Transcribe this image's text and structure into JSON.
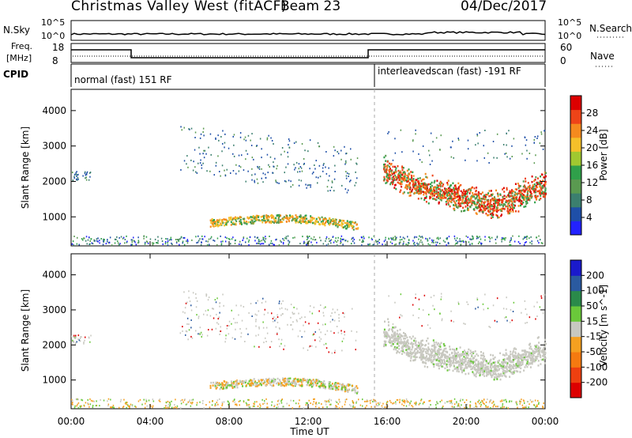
{
  "header": {
    "title": "Christmas Valley West (fitACF)",
    "beam": "Beam 23",
    "date": "04/Dec/2017"
  },
  "top_panels": {
    "nsky_label": "N.Sky",
    "nsearch_label": "N.Search",
    "nsky_ticks": [
      "10^5",
      "10^0"
    ],
    "nsearch_ticks": [
      "10^5",
      "10^0"
    ],
    "freq_label_1": "Freq.",
    "freq_label_2": "[MHz]",
    "freq_ticks": [
      "18",
      "8"
    ],
    "nave_label": "Nave",
    "nave_ticks": [
      "60",
      "0"
    ],
    "cpid_label": "CPID",
    "cpid_segments": [
      {
        "label": "normal (fast) 151 RF",
        "start": "00:00",
        "end": "15:00"
      },
      {
        "label": "interleavedscan (fast) -191 RF",
        "start": "15:00",
        "end": "24:00"
      }
    ]
  },
  "chart_data": [
    {
      "type": "heatmap",
      "title": "Power",
      "xlabel": "Time UT",
      "ylabel": "Slant Range [km]",
      "xlim": [
        0,
        24
      ],
      "ylim": [
        180,
        4600
      ],
      "x_ticks": [
        "00:00",
        "04:00",
        "08:00",
        "12:00",
        "16:00",
        "20:00",
        "00:00"
      ],
      "y_ticks": [
        "1000",
        "2000",
        "3000",
        "4000"
      ],
      "colorbar": {
        "label": "Power [dB]",
        "ticks": [
          "4",
          "8",
          "12",
          "16",
          "20",
          "24",
          "28"
        ],
        "colors": [
          "#2222ff",
          "#1e4fa8",
          "#3b7f6e",
          "#5a9a50",
          "#2fa04a",
          "#a0c830",
          "#f5c02a",
          "#f58a1e",
          "#ee4418",
          "#dd0000"
        ]
      },
      "features": [
        {
          "name": "band",
          "t0": 7.0,
          "t1": 14.5,
          "r_start": 860,
          "r_end": 800,
          "power": "12-20 dB"
        },
        {
          "name": "band",
          "t0": 15.8,
          "t1": 24.0,
          "r_start": 2300,
          "r_end": 1500,
          "power": "20-28 dB"
        }
      ]
    },
    {
      "type": "heatmap",
      "title": "Velocity",
      "xlabel": "Time UT",
      "ylabel": "Slant Range [km]",
      "xlim": [
        0,
        24
      ],
      "ylim": [
        180,
        4600
      ],
      "x_ticks": [
        "00:00",
        "04:00",
        "08:00",
        "12:00",
        "16:00",
        "20:00",
        "00:00"
      ],
      "y_ticks": [
        "1000",
        "2000",
        "3000",
        "4000"
      ],
      "colorbar": {
        "label": "Velocity [m s^-1]",
        "ticks": [
          "200",
          "100",
          "50",
          "15",
          "-15",
          "-50",
          "-100",
          "-200"
        ],
        "colors": [
          "#1a1acc",
          "#2a5aa0",
          "#2a8a4a",
          "#6ac83a",
          "#c8c8c0",
          "#f5a020",
          "#f57a10",
          "#ee4010",
          "#dd0000"
        ]
      },
      "features": [
        {
          "name": "band",
          "t0": 7.0,
          "t1": 14.5,
          "r_start": 860,
          "r_end": 800,
          "velocity": "-15 to 50 m/s"
        },
        {
          "name": "band",
          "t0": 15.8,
          "t1": 24.0,
          "r_start": 2300,
          "r_end": 1500,
          "velocity": "-15 to 15 m/s"
        }
      ]
    }
  ]
}
